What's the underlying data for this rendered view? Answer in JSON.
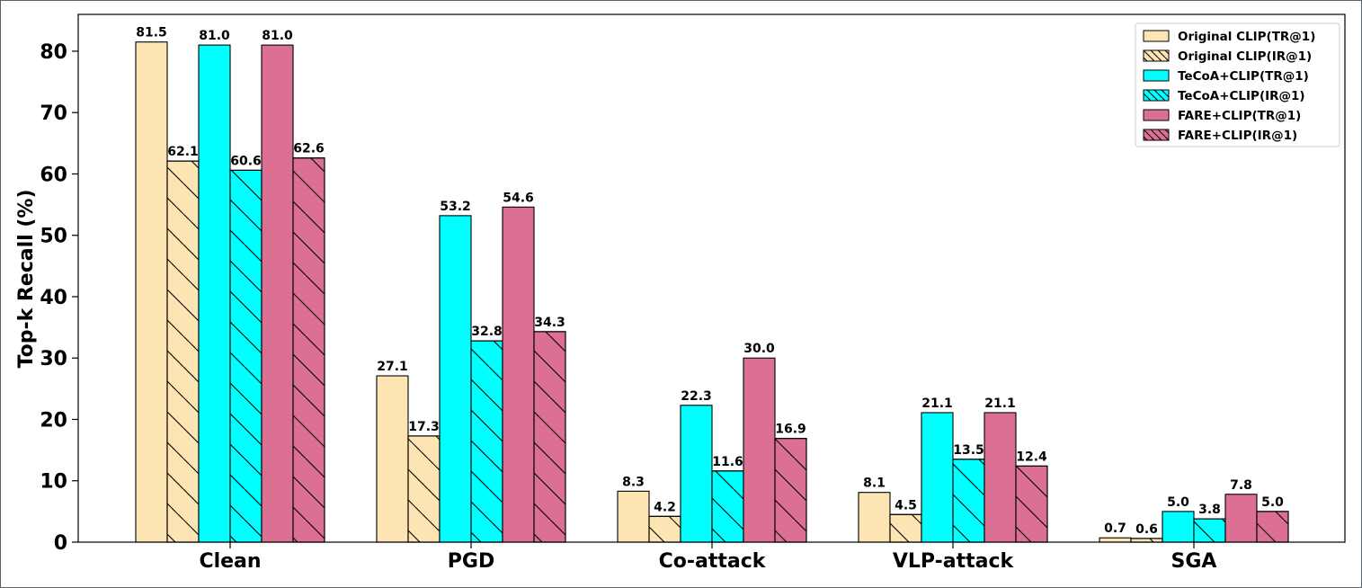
{
  "chart_data": {
    "type": "bar",
    "title": "",
    "xlabel": "",
    "ylabel": "Top-k Recall (%)",
    "ylim": [
      0,
      86
    ],
    "yticks": [
      0,
      10,
      20,
      30,
      40,
      50,
      60,
      70,
      80
    ],
    "grid": false,
    "legend_position": "top-right",
    "categories": [
      "Clean",
      "PGD",
      "Co-attack",
      "VLP-attack",
      "SGA"
    ],
    "series": [
      {
        "name": "Original CLIP(TR@1)",
        "color": "#fde4b3",
        "hatch": false,
        "values": [
          81.5,
          27.1,
          8.3,
          8.1,
          0.7
        ],
        "labels": [
          "81.5",
          "27.1",
          "8.3",
          "8.1",
          "0.7"
        ]
      },
      {
        "name": "Original CLIP(IR@1)",
        "color": "#fde4b3",
        "hatch": true,
        "values": [
          62.1,
          17.3,
          4.2,
          4.5,
          0.6
        ],
        "labels": [
          "62.1",
          "17.3",
          "4.2",
          "4.5",
          "0.6"
        ]
      },
      {
        "name": "TeCoA+CLIP(TR@1)",
        "color": "#00ffff",
        "hatch": false,
        "values": [
          81.0,
          53.2,
          22.3,
          21.1,
          5.0
        ],
        "labels": [
          "81.0",
          "53.2",
          "22.3",
          "21.1",
          "5.0"
        ]
      },
      {
        "name": "TeCoA+CLIP(IR@1)",
        "color": "#00ffff",
        "hatch": true,
        "values": [
          60.6,
          32.8,
          11.6,
          13.5,
          3.8
        ],
        "labels": [
          "60.6",
          "32.8",
          "11.6",
          "13.5",
          "3.8"
        ]
      },
      {
        "name": "FARE+CLIP(TR@1)",
        "color": "#db7093",
        "hatch": false,
        "values": [
          81.0,
          54.6,
          30.0,
          21.1,
          7.8
        ],
        "labels": [
          "81.0",
          "54.6",
          "30.0",
          "21.1",
          "7.8"
        ]
      },
      {
        "name": "FARE+CLIP(IR@1)",
        "color": "#db7093",
        "hatch": true,
        "values": [
          62.6,
          34.3,
          16.9,
          12.4,
          5.0
        ],
        "labels": [
          "62.6",
          "34.3",
          "16.9",
          "12.4",
          "5.0"
        ]
      }
    ]
  }
}
